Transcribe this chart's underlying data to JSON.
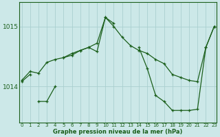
{
  "line1_segments": [
    {
      "x": [
        0,
        1,
        2,
        3,
        4,
        5,
        6,
        7,
        8,
        9,
        10,
        11,
        12,
        13,
        14,
        15,
        16,
        17,
        18,
        19,
        20,
        21,
        22,
        23
      ],
      "y": [
        1014.1,
        1014.25,
        1014.22,
        1014.4,
        1014.45,
        1014.48,
        1014.55,
        1014.6,
        1014.65,
        1014.72,
        1015.15,
        1015.0,
        1014.82,
        1014.68,
        1014.6,
        1014.55,
        1014.45,
        1014.38,
        1014.2,
        1014.15,
        1014.1,
        1014.08,
        1014.65,
        1015.0
      ]
    }
  ],
  "line2_segments": [
    {
      "x": [
        0,
        1
      ],
      "y": [
        1014.08,
        1014.2
      ]
    },
    {
      "x": [
        2,
        3,
        4
      ],
      "y": [
        1013.75,
        1013.75,
        1014.0
      ]
    },
    {
      "x": [
        5,
        6,
        7,
        8,
        9,
        10,
        11
      ],
      "y": [
        1014.48,
        1014.52,
        1014.6,
        1014.65,
        1014.58,
        1015.15,
        1015.05
      ]
    },
    {
      "x": [
        14,
        15,
        16,
        17,
        18,
        19,
        20,
        21,
        22,
        23
      ],
      "y": [
        1014.65,
        1014.3,
        1013.85,
        1013.75,
        1013.6,
        1013.6,
        1013.6,
        1013.62,
        1014.65,
        1015.0
      ]
    }
  ],
  "bg_color": "#cce8e8",
  "grid_color": "#aacfcf",
  "line_color": "#1a5e1a",
  "xlabel": "Graphe pression niveau de la mer (hPa)",
  "ytick_labels": [
    "1014",
    "1015"
  ],
  "ytick_values": [
    1014,
    1015
  ],
  "ylim": [
    1013.4,
    1015.4
  ],
  "xlim": [
    -0.3,
    23.3
  ],
  "xtick_values": [
    0,
    1,
    2,
    3,
    4,
    5,
    6,
    7,
    8,
    9,
    10,
    11,
    12,
    13,
    14,
    15,
    16,
    17,
    18,
    19,
    20,
    21,
    22,
    23
  ]
}
